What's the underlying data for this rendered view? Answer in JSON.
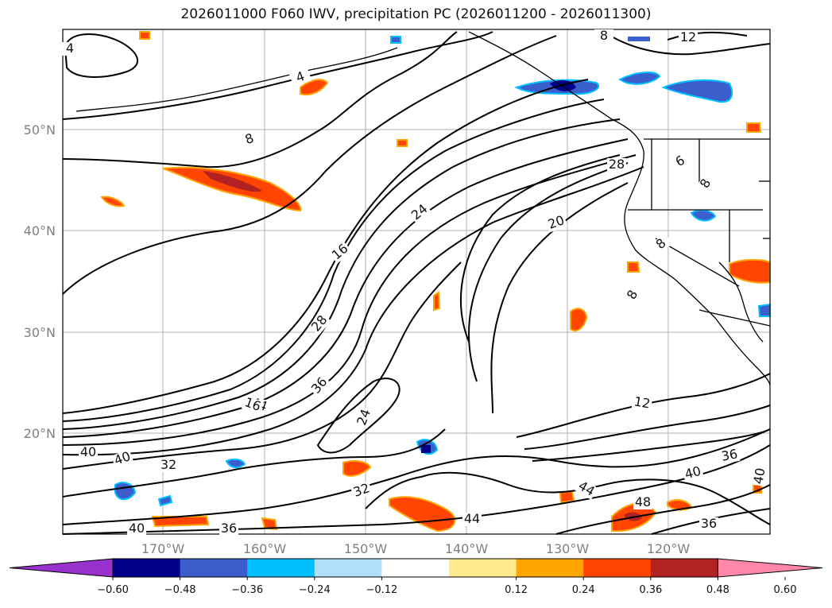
{
  "title": "2026011000 F060 IWV, precipitation PC (2026011200 - 2026011300)",
  "lat_labels": [
    "50°N",
    "40°N",
    "30°N",
    "20°N"
  ],
  "lon_labels": [
    "170°W",
    "160°W",
    "150°W",
    "140°W",
    "130°W",
    "120°W"
  ],
  "colorbar": {
    "tick_labels": [
      "−0.60",
      "−0.48",
      "−0.36",
      "−0.24",
      "−0.12",
      "0.12",
      "0.24",
      "0.36",
      "0.48",
      "0.60"
    ],
    "colors": [
      "#9932cc",
      "#00008b",
      "#3a5fcd",
      "#00bfff",
      "#afe0fa",
      "#ffffff",
      "#ffeb8c",
      "#ffa500",
      "#ff4500",
      "#b22222",
      "#ff88aa"
    ]
  },
  "contour_labels": [
    "4",
    "4",
    "8",
    "8",
    "12",
    "16",
    "24",
    "20",
    "28",
    "28",
    "36",
    "44",
    "16",
    "24",
    "8",
    "8",
    "8",
    "12",
    "36",
    "40",
    "44",
    "48",
    "40",
    "36",
    "44",
    "40",
    "32",
    "32",
    "40",
    "36",
    "40",
    "6"
  ]
}
